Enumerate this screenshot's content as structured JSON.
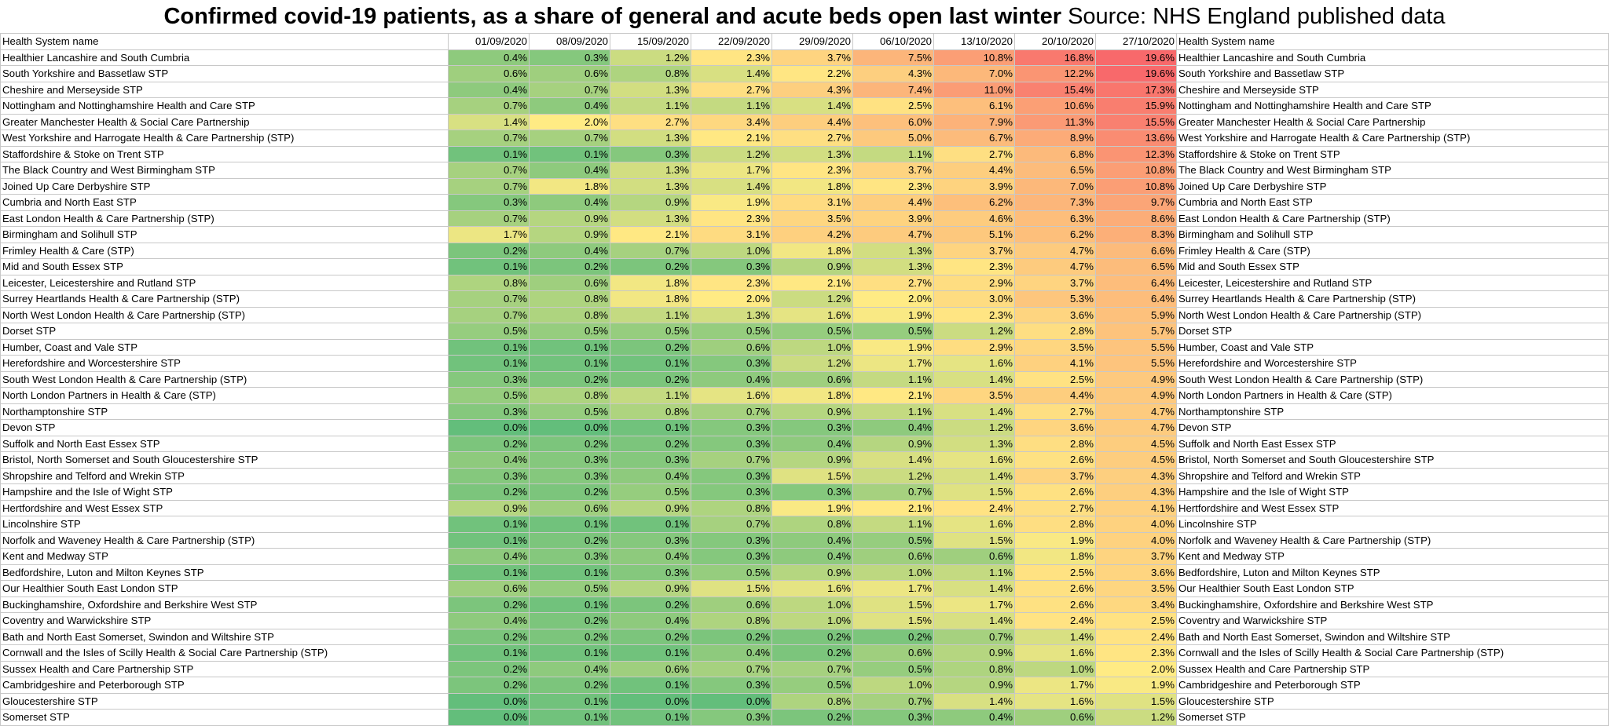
{
  "title": "Confirmed covid-19 patients, as a share of general and acute beds open last winter",
  "source": "Source: NHS England published data",
  "chart_data": {
    "type": "table",
    "name_header": "Health System name",
    "columns": [
      "01/09/2020",
      "08/09/2020",
      "15/09/2020",
      "22/09/2020",
      "29/09/2020",
      "06/10/2020",
      "13/10/2020",
      "20/10/2020",
      "27/10/2020"
    ],
    "color_scale": {
      "low": "#63be7b",
      "mid": "#ffeb84",
      "high": "#f8696b",
      "min": 0.0,
      "max": 19.6
    },
    "rows": [
      {
        "name": "Healthier Lancashire and South Cumbria",
        "values": [
          0.4,
          0.3,
          1.2,
          2.3,
          3.7,
          7.5,
          10.8,
          16.8,
          19.6
        ]
      },
      {
        "name": "South Yorkshire and Bassetlaw STP",
        "values": [
          0.6,
          0.6,
          0.8,
          1.4,
          2.2,
          4.3,
          7.0,
          12.2,
          19.6
        ]
      },
      {
        "name": "Cheshire and Merseyside STP",
        "values": [
          0.4,
          0.7,
          1.3,
          2.7,
          4.3,
          7.4,
          11.0,
          15.4,
          17.3
        ]
      },
      {
        "name": "Nottingham and Nottinghamshire Health and Care STP",
        "values": [
          0.7,
          0.4,
          1.1,
          1.1,
          1.4,
          2.5,
          6.1,
          10.6,
          15.9
        ]
      },
      {
        "name": "Greater Manchester Health & Social Care Partnership",
        "values": [
          1.4,
          2.0,
          2.7,
          3.4,
          4.4,
          6.0,
          7.9,
          11.3,
          15.5
        ]
      },
      {
        "name": "West Yorkshire and Harrogate Health & Care Partnership (STP)",
        "values": [
          0.7,
          0.7,
          1.3,
          2.1,
          2.7,
          5.0,
          6.7,
          8.9,
          13.6
        ]
      },
      {
        "name": "Staffordshire & Stoke on Trent STP",
        "values": [
          0.1,
          0.1,
          0.3,
          1.2,
          1.3,
          1.1,
          2.7,
          6.8,
          12.3
        ]
      },
      {
        "name": "The Black Country and West Birmingham STP",
        "values": [
          0.7,
          0.4,
          1.3,
          1.7,
          2.3,
          3.7,
          4.4,
          6.5,
          10.8
        ]
      },
      {
        "name": "Joined Up Care Derbyshire STP",
        "values": [
          0.7,
          1.8,
          1.3,
          1.4,
          1.8,
          2.3,
          3.9,
          7.0,
          10.8
        ]
      },
      {
        "name": "Cumbria and North East STP",
        "values": [
          0.3,
          0.4,
          0.9,
          1.9,
          3.1,
          4.4,
          6.2,
          7.3,
          9.7
        ]
      },
      {
        "name": "East London Health & Care Partnership (STP)",
        "values": [
          0.7,
          0.9,
          1.3,
          2.3,
          3.5,
          3.9,
          4.6,
          6.3,
          8.6
        ]
      },
      {
        "name": "Birmingham and Solihull STP",
        "values": [
          1.7,
          0.9,
          2.1,
          3.1,
          4.2,
          4.7,
          5.1,
          6.2,
          8.3
        ]
      },
      {
        "name": "Frimley Health & Care (STP)",
        "values": [
          0.2,
          0.4,
          0.7,
          1.0,
          1.8,
          1.3,
          3.7,
          4.7,
          6.6
        ]
      },
      {
        "name": "Mid and South Essex STP",
        "values": [
          0.1,
          0.2,
          0.2,
          0.3,
          0.9,
          1.3,
          2.3,
          4.7,
          6.5
        ]
      },
      {
        "name": "Leicester, Leicestershire and Rutland STP",
        "values": [
          0.8,
          0.6,
          1.8,
          2.3,
          2.1,
          2.7,
          2.9,
          3.7,
          6.4
        ]
      },
      {
        "name": "Surrey Heartlands Health & Care Partnership (STP)",
        "values": [
          0.7,
          0.8,
          1.8,
          2.0,
          1.2,
          2.0,
          3.0,
          5.3,
          6.4
        ]
      },
      {
        "name": "North West London Health & Care Partnership (STP)",
        "values": [
          0.7,
          0.8,
          1.1,
          1.3,
          1.6,
          1.9,
          2.3,
          3.6,
          5.9
        ]
      },
      {
        "name": "Dorset STP",
        "values": [
          0.5,
          0.5,
          0.5,
          0.5,
          0.5,
          0.5,
          1.2,
          2.8,
          5.7
        ]
      },
      {
        "name": "Humber, Coast and Vale STP",
        "values": [
          0.1,
          0.1,
          0.2,
          0.6,
          1.0,
          1.9,
          2.9,
          3.5,
          5.5
        ]
      },
      {
        "name": "Herefordshire and Worcestershire STP",
        "values": [
          0.1,
          0.1,
          0.1,
          0.3,
          1.2,
          1.7,
          1.6,
          4.1,
          5.5
        ]
      },
      {
        "name": "South West London Health & Care Partnership (STP)",
        "values": [
          0.3,
          0.2,
          0.2,
          0.4,
          0.6,
          1.1,
          1.4,
          2.5,
          4.9
        ]
      },
      {
        "name": "North London Partners in Health & Care (STP)",
        "values": [
          0.5,
          0.8,
          1.1,
          1.6,
          1.8,
          2.1,
          3.5,
          4.4,
          4.9
        ]
      },
      {
        "name": "Northamptonshire STP",
        "values": [
          0.3,
          0.5,
          0.8,
          0.7,
          0.9,
          1.1,
          1.4,
          2.7,
          4.7
        ]
      },
      {
        "name": "Devon STP",
        "values": [
          0.0,
          0.0,
          0.1,
          0.3,
          0.3,
          0.4,
          1.2,
          3.6,
          4.7
        ]
      },
      {
        "name": "Suffolk and North East Essex STP",
        "values": [
          0.2,
          0.2,
          0.2,
          0.3,
          0.4,
          0.9,
          1.3,
          2.8,
          4.5
        ]
      },
      {
        "name": "Bristol, North Somerset and South Gloucestershire STP",
        "values": [
          0.4,
          0.3,
          0.3,
          0.7,
          0.9,
          1.4,
          1.6,
          2.6,
          4.5
        ]
      },
      {
        "name": "Shropshire and Telford and Wrekin STP",
        "values": [
          0.3,
          0.3,
          0.4,
          0.3,
          1.5,
          1.2,
          1.4,
          3.7,
          4.3
        ]
      },
      {
        "name": "Hampshire and the Isle of Wight STP",
        "values": [
          0.2,
          0.2,
          0.5,
          0.3,
          0.3,
          0.7,
          1.5,
          2.6,
          4.3
        ]
      },
      {
        "name": "Hertfordshire and West Essex STP",
        "values": [
          0.9,
          0.6,
          0.9,
          0.8,
          1.9,
          2.1,
          2.4,
          2.7,
          4.1
        ]
      },
      {
        "name": "Lincolnshire STP",
        "values": [
          0.1,
          0.1,
          0.1,
          0.7,
          0.8,
          1.1,
          1.6,
          2.8,
          4.0
        ]
      },
      {
        "name": "Norfolk and Waveney Health & Care Partnership (STP)",
        "values": [
          0.1,
          0.2,
          0.3,
          0.3,
          0.4,
          0.5,
          1.5,
          1.9,
          4.0
        ]
      },
      {
        "name": "Kent and Medway STP",
        "values": [
          0.4,
          0.3,
          0.4,
          0.3,
          0.4,
          0.6,
          0.6,
          1.8,
          3.7
        ]
      },
      {
        "name": "Bedfordshire, Luton and Milton Keynes STP",
        "values": [
          0.1,
          0.1,
          0.3,
          0.5,
          0.9,
          1.0,
          1.1,
          2.5,
          3.6
        ]
      },
      {
        "name": "Our Healthier South East London STP",
        "values": [
          0.6,
          0.5,
          0.9,
          1.5,
          1.6,
          1.7,
          1.4,
          2.6,
          3.5
        ]
      },
      {
        "name": "Buckinghamshire, Oxfordshire and Berkshire West STP",
        "values": [
          0.2,
          0.1,
          0.2,
          0.6,
          1.0,
          1.5,
          1.7,
          2.6,
          3.4
        ]
      },
      {
        "name": "Coventry and Warwickshire STP",
        "values": [
          0.4,
          0.2,
          0.4,
          0.8,
          1.0,
          1.5,
          1.4,
          2.4,
          2.5
        ]
      },
      {
        "name": "Bath and North East Somerset, Swindon and Wiltshire STP",
        "values": [
          0.2,
          0.2,
          0.2,
          0.2,
          0.2,
          0.2,
          0.7,
          1.4,
          2.4
        ]
      },
      {
        "name": "Cornwall and the Isles of Scilly Health & Social Care Partnership (STP)",
        "values": [
          0.1,
          0.1,
          0.1,
          0.4,
          0.2,
          0.6,
          0.9,
          1.6,
          2.3
        ]
      },
      {
        "name": "Sussex Health and Care Partnership STP",
        "values": [
          0.2,
          0.4,
          0.6,
          0.7,
          0.7,
          0.5,
          0.8,
          1.0,
          2.0
        ]
      },
      {
        "name": "Cambridgeshire and Peterborough STP",
        "values": [
          0.2,
          0.2,
          0.1,
          0.3,
          0.5,
          1.0,
          0.9,
          1.7,
          1.9
        ]
      },
      {
        "name": "Gloucestershire STP",
        "values": [
          0.0,
          0.1,
          0.0,
          0.0,
          0.8,
          0.7,
          1.4,
          1.6,
          1.5
        ]
      },
      {
        "name": "Somerset STP",
        "values": [
          0.0,
          0.1,
          0.1,
          0.3,
          0.2,
          0.3,
          0.4,
          0.6,
          1.2
        ]
      }
    ]
  }
}
